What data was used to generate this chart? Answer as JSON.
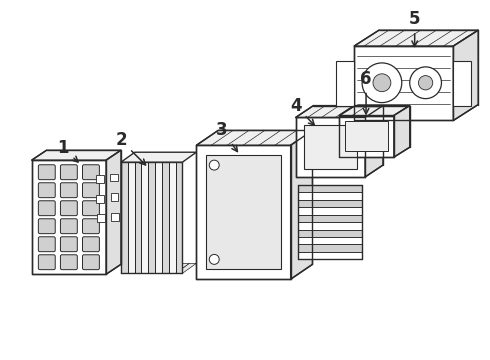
{
  "bg_color": "#ffffff",
  "line_color": "#2a2a2a",
  "line_width": 1.0,
  "font_size": 12,
  "font_weight": "bold",
  "fig_w": 4.9,
  "fig_h": 3.6,
  "dpi": 100
}
